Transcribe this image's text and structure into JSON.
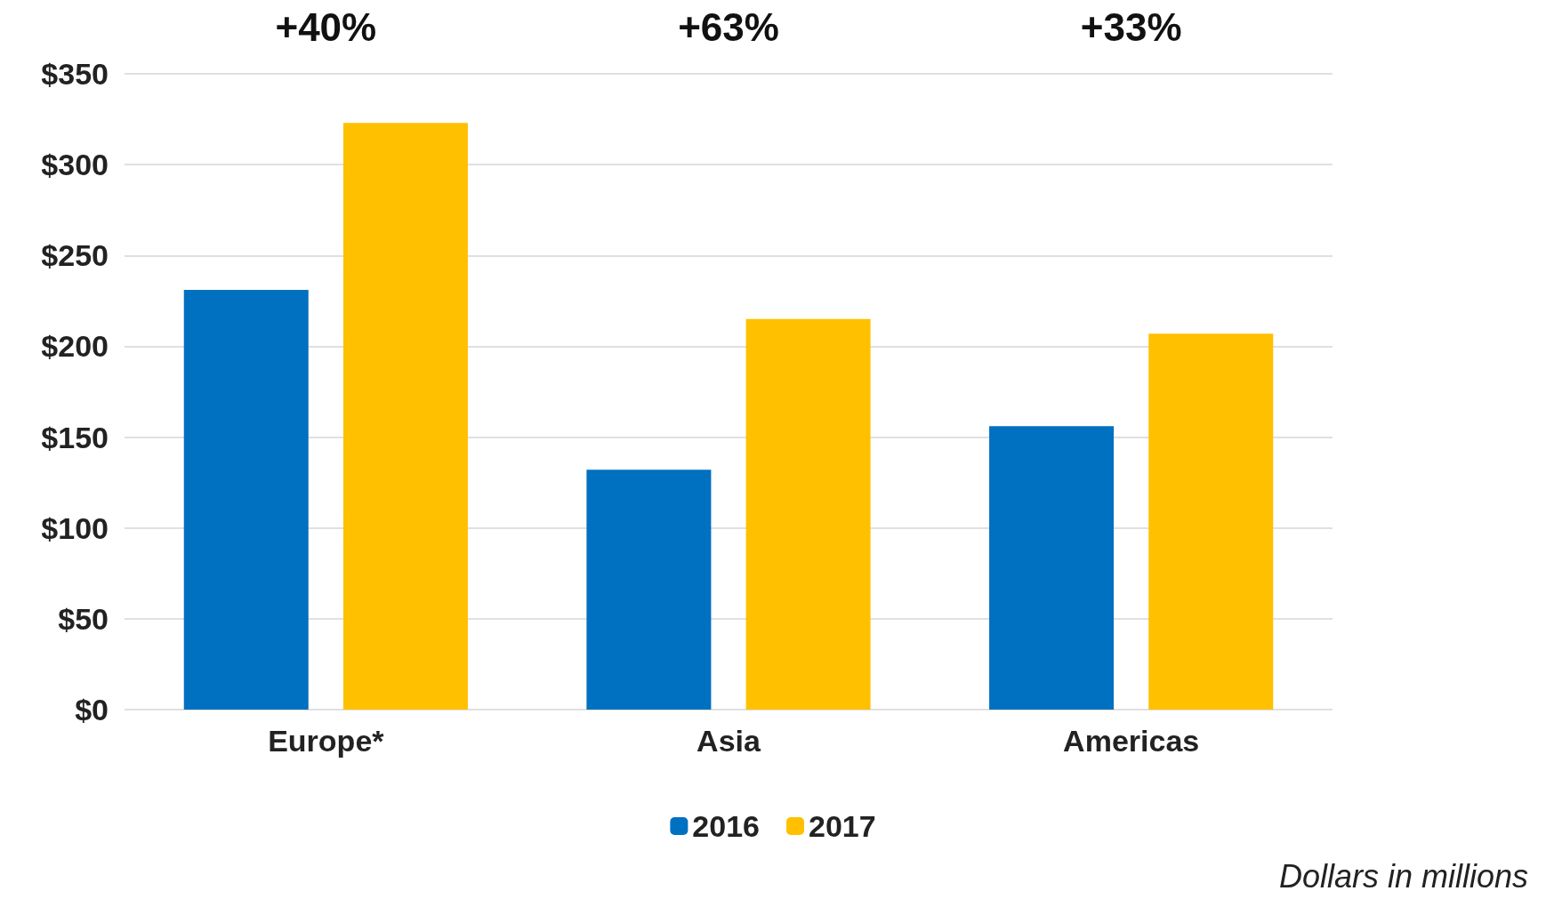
{
  "chart_data": {
    "type": "bar",
    "categories": [
      "Europe*",
      "Asia",
      "Americas"
    ],
    "series": [
      {
        "name": "2016",
        "color": "#0070c0",
        "values": [
          231,
          132,
          156
        ]
      },
      {
        "name": "2017",
        "color": "#ffc000",
        "values": [
          323,
          215,
          207
        ]
      }
    ],
    "ylim": [
      0,
      350
    ],
    "yticks": [
      {
        "value": 0,
        "label": "$0"
      },
      {
        "value": 50,
        "label": "$50"
      },
      {
        "value": 100,
        "label": "$100"
      },
      {
        "value": 150,
        "label": "$150"
      },
      {
        "value": 200,
        "label": "$200"
      },
      {
        "value": 250,
        "label": "$250"
      },
      {
        "value": 300,
        "label": "$300"
      },
      {
        "value": 350,
        "label": "$350"
      }
    ],
    "grid": "y",
    "legend": "bottom",
    "annotations": [
      "+40%",
      "+63%",
      "+33%",
      "Dollars in millions"
    ]
  }
}
